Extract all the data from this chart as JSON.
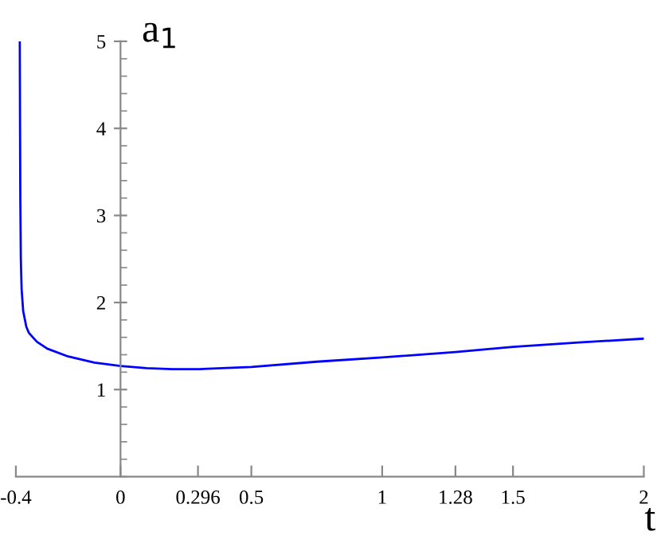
{
  "chart_data": {
    "type": "line",
    "xlabel": "t",
    "ylabel": "a$_{1}$",
    "x": [
      -0.385,
      -0.384,
      -0.383,
      -0.381,
      -0.378,
      -0.372,
      -0.36,
      -0.35,
      -0.32,
      -0.28,
      -0.2,
      -0.1,
      0,
      0.1,
      0.2,
      0.3,
      0.5,
      0.75,
      1,
      1.28,
      1.5,
      1.75,
      2
    ],
    "series": [
      {
        "color": "#0000ff",
        "values": [
          5,
          4,
          3.2,
          2.5,
          2.15,
          1.9,
          1.72,
          1.65,
          1.55,
          1.47,
          1.38,
          1.31,
          1.27,
          1.245,
          1.235,
          1.235,
          1.26,
          1.32,
          1.37,
          1.43,
          1.49,
          1.54,
          1.585
        ]
      }
    ],
    "xlim": [
      -0.4,
      2
    ],
    "ylim": [
      0,
      5
    ],
    "xticks": [
      -0.4,
      0,
      0.296,
      0.5,
      1,
      1.28,
      1.5,
      2
    ],
    "yticks": [
      1,
      2,
      3,
      4,
      5
    ],
    "grid": false,
    "legend": false,
    "marker": "none",
    "line_style": "solid"
  }
}
